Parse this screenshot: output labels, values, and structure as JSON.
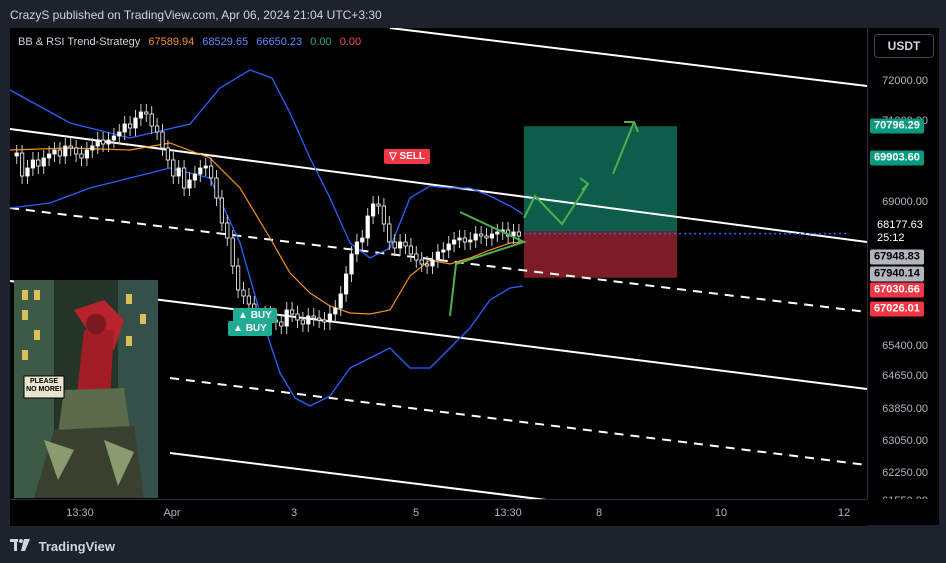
{
  "header": {
    "published": "CrazyS published on TradingView.com, Apr 06, 2024 21:04 UTC+3:30"
  },
  "legend": {
    "name": "BB & RSI Trend-Strategy",
    "v1": "67589.94",
    "v2": "68529.65",
    "v3": "66650.23",
    "v4": "0.00",
    "v5": "0.00",
    "c1": "#f7931a",
    "c2": "#2962ff",
    "c3": "#2962ff",
    "c4": "#26a69a",
    "c5": "#ef5350"
  },
  "currency_button": "USDT",
  "signals": {
    "sell": "SELL",
    "buy1": "BUY",
    "buy2": "BUY",
    "sell_icon": "down-triangle-icon",
    "buy_icon": "up-triangle-icon"
  },
  "last_price": {
    "value": "68177.63",
    "countdown": "25:12"
  },
  "footer": {
    "brand": "TradingView",
    "logo_icon": "tv-logo-icon"
  },
  "artwork": {
    "caption": "PLEASE NO MORE!"
  },
  "chart_data": {
    "type": "candlestick",
    "ylim": [
      61550,
      73200
    ],
    "y_ticks": [
      "72000.00",
      "71000.00",
      "69000.00",
      "65400.00",
      "64650.00",
      "63850.00",
      "63050.00",
      "62250.00",
      "61550.00"
    ],
    "x_ticks": [
      "13:30",
      "Apr",
      "3",
      "5",
      "13:30",
      "8",
      "10",
      "12"
    ],
    "price_labels": [
      {
        "text": "70796.29",
        "bg": "#089981",
        "fg": "#ffffff"
      },
      {
        "text": "69903.60",
        "bg": "#089981",
        "fg": "#ffffff"
      },
      {
        "text": "67948.83",
        "bg": "#b2b5be",
        "fg": "#000000"
      },
      {
        "text": "67940.14",
        "bg": "#b2b5be",
        "fg": "#000000"
      },
      {
        "text": "67030.66",
        "bg": "#f23645",
        "fg": "#ffffff"
      },
      {
        "text": "67026.01",
        "bg": "#f23645",
        "fg": "#ffffff"
      }
    ],
    "series": [
      {
        "name": "basis",
        "color": "#f7931a"
      },
      {
        "name": "upper",
        "color": "#2962ff"
      },
      {
        "name": "lower",
        "color": "#2962ff"
      }
    ],
    "position": {
      "target_price": 70796.29,
      "entry_price": 68177.63,
      "stop_price": 67030.66
    }
  }
}
